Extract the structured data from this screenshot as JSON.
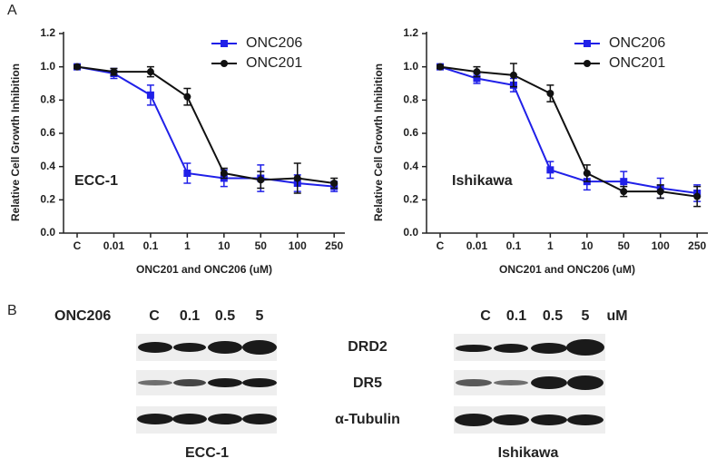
{
  "panel_labels": [
    "A",
    "B"
  ],
  "chart_data": [
    {
      "type": "line",
      "y_label": "Relative Cell Growth Inhibition",
      "x_label": "ONC201 and ONC206 (uM)",
      "annotation": "ECC-1",
      "categories": [
        "C",
        "0.01",
        "0.1",
        "1",
        "10",
        "50",
        "100",
        "250"
      ],
      "ylim": [
        0,
        1.2
      ],
      "yticks": [
        {
          "value": 0,
          "label": "0.0"
        },
        0.2,
        0.4,
        0.6,
        0.8,
        {
          "value": 1,
          "label": "1.0"
        },
        1.2
      ],
      "series": [
        {
          "name": "ONC206",
          "color": "#2020e8",
          "marker": "square",
          "values": [
            1.0,
            0.96,
            0.83,
            0.36,
            0.33,
            0.33,
            0.3,
            0.28
          ],
          "errors": [
            0.01,
            0.03,
            0.06,
            0.06,
            0.05,
            0.08,
            0.05,
            0.03
          ]
        },
        {
          "name": "ONC201",
          "color": "#111111",
          "marker": "circle",
          "values": [
            1.0,
            0.97,
            0.97,
            0.82,
            0.36,
            0.32,
            0.33,
            0.3
          ],
          "errors": [
            0.01,
            0.02,
            0.03,
            0.05,
            0.03,
            0.05,
            0.09,
            0.03
          ]
        }
      ]
    },
    {
      "type": "line",
      "y_label": "Relative Cell Growth Inhibition",
      "x_label": "ONC201 and ONC206 (uM)",
      "annotation": "Ishikawa",
      "categories": [
        "C",
        "0.01",
        "0.1",
        "1",
        "10",
        "50",
        "100",
        "250"
      ],
      "ylim": [
        0,
        1.2
      ],
      "yticks": [
        {
          "value": 0,
          "label": "0.0"
        },
        0.2,
        0.4,
        0.6,
        0.8,
        {
          "value": 1,
          "label": "1.0"
        },
        1.2
      ],
      "series": [
        {
          "name": "ONC206",
          "color": "#2020e8",
          "marker": "square",
          "values": [
            1.0,
            0.93,
            0.89,
            0.38,
            0.31,
            0.31,
            0.27,
            0.24
          ],
          "errors": [
            0.01,
            0.03,
            0.04,
            0.05,
            0.05,
            0.06,
            0.06,
            0.05
          ]
        },
        {
          "name": "ONC201",
          "color": "#111111",
          "marker": "circle",
          "values": [
            1.0,
            0.97,
            0.95,
            0.84,
            0.36,
            0.25,
            0.25,
            0.22
          ],
          "errors": [
            0.01,
            0.03,
            0.07,
            0.05,
            0.05,
            0.03,
            0.04,
            0.06
          ]
        }
      ]
    }
  ],
  "blot": {
    "treatment": "ONC206",
    "left_doses": [
      "C",
      "0.1",
      "0.5",
      "5"
    ],
    "right_doses": [
      "C",
      "0.1",
      "0.5",
      "5"
    ],
    "unit": "uM",
    "rows": [
      "DRD2",
      "DR5",
      "α-Tubulin"
    ],
    "cell_lines": [
      "ECC-1",
      "Ishikawa"
    ]
  }
}
